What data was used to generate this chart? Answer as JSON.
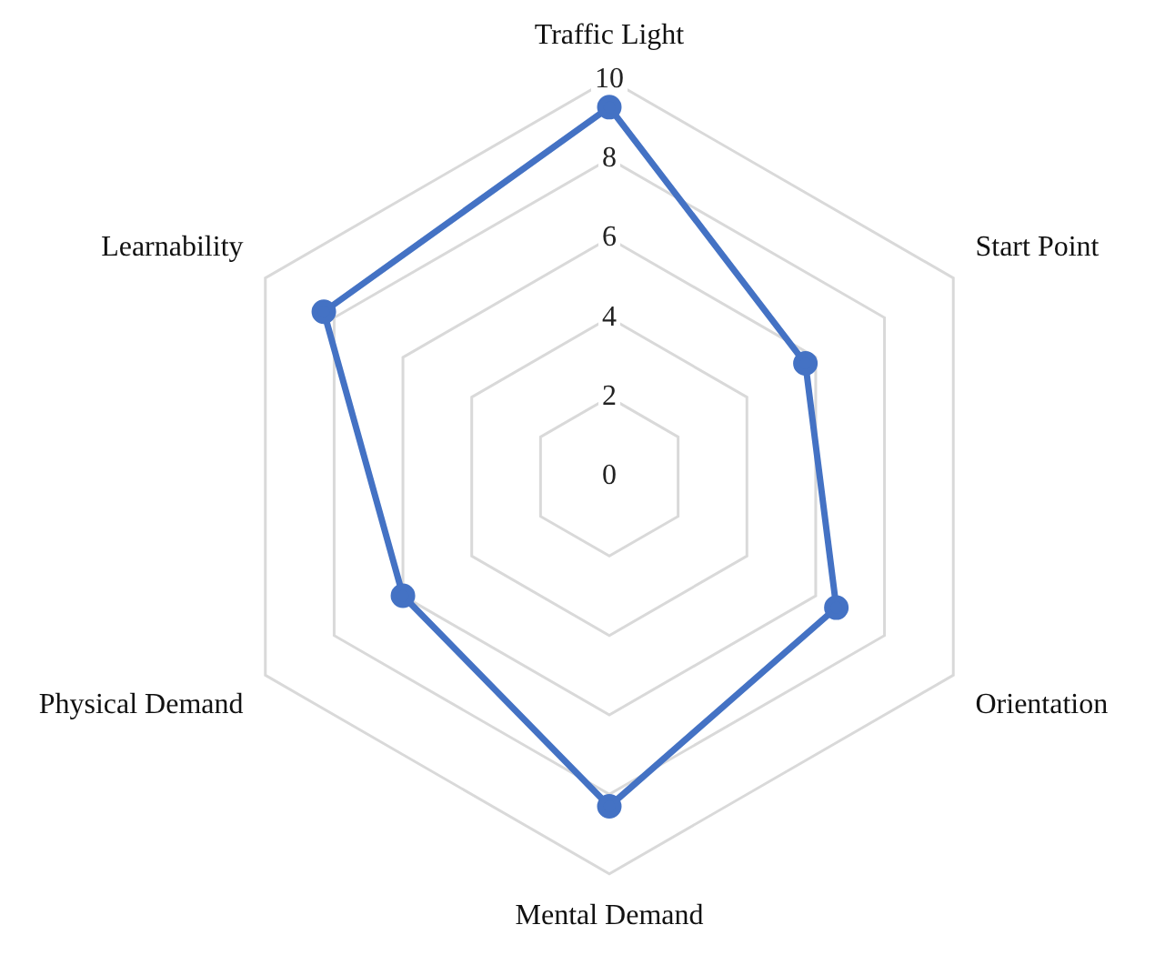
{
  "chart_data": {
    "type": "radar",
    "categories": [
      "Traffic Light",
      "Start Point",
      "Orientation",
      "Mental Demand",
      "Physical Demand",
      "Learnability"
    ],
    "series": [
      {
        "color": "#4472c4",
        "values": [
          9.3,
          5.7,
          6.6,
          8.3,
          6.0,
          8.3
        ]
      }
    ],
    "ylim": [
      0,
      10
    ],
    "yticks": [
      0,
      2,
      4,
      6,
      8,
      10
    ],
    "grid": true,
    "legend": false,
    "marker": "circle"
  }
}
